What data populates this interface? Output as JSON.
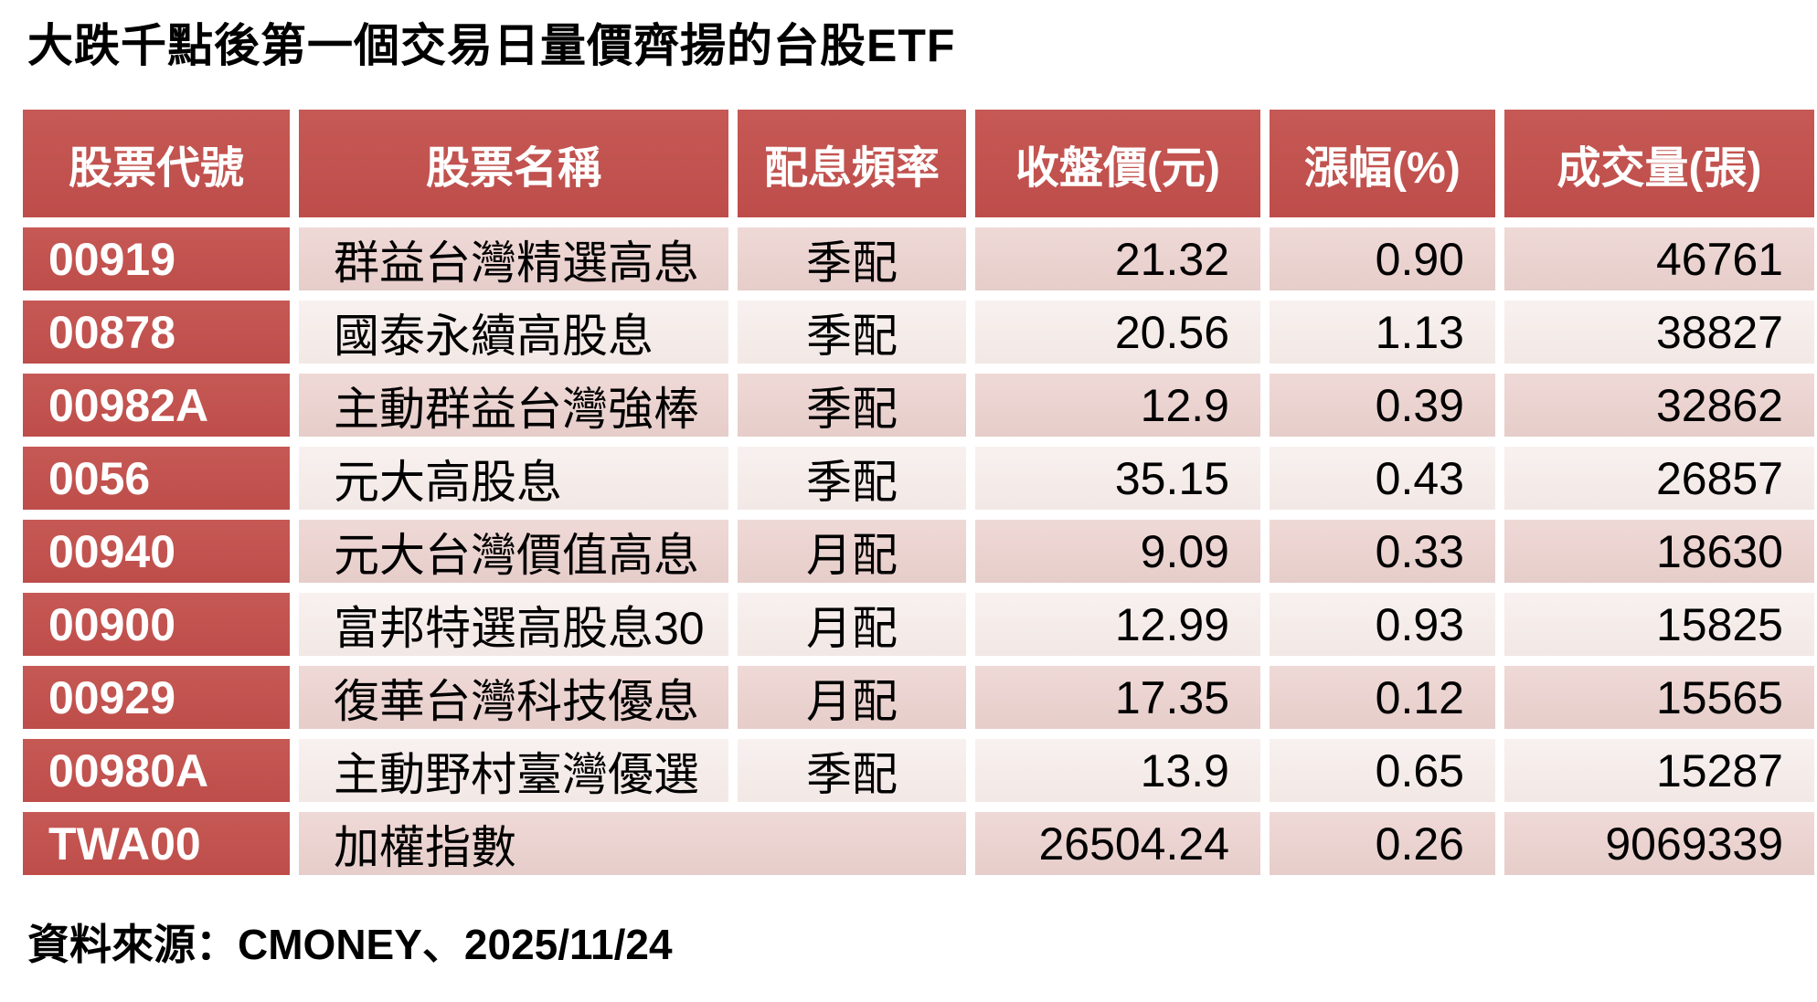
{
  "title": "大跌千點後第一個交易日量價齊揚的台股ETF",
  "source_note": "資料來源：CMONEY、2025/11/24",
  "colors": {
    "header_red": "#C0504D",
    "band_dark_pink": "#E9D2CF",
    "band_light_pink": "#F6EFEC",
    "header_text": "#FFFFFF",
    "body_text": "#000000"
  },
  "table": {
    "headers": [
      "股票代號",
      "股票名稱",
      "配息頻率",
      "收盤價(元)",
      "漲幅(%)",
      "成交量(張)"
    ],
    "rows": [
      {
        "code": "00919",
        "name": "群益台灣精選高息",
        "freq": "季配",
        "close": "21.32",
        "change": "0.90",
        "volume": "46761"
      },
      {
        "code": "00878",
        "name": "國泰永續高股息",
        "freq": "季配",
        "close": "20.56",
        "change": "1.13",
        "volume": "38827"
      },
      {
        "code": "00982A",
        "name": "主動群益台灣強棒",
        "freq": "季配",
        "close": "12.9",
        "change": "0.39",
        "volume": "32862"
      },
      {
        "code": "0056",
        "name": "元大高股息",
        "freq": "季配",
        "close": "35.15",
        "change": "0.43",
        "volume": "26857"
      },
      {
        "code": "00940",
        "name": "元大台灣價值高息",
        "freq": "月配",
        "close": "9.09",
        "change": "0.33",
        "volume": "18630"
      },
      {
        "code": "00900",
        "name": "富邦特選高股息30",
        "freq": "月配",
        "close": "12.99",
        "change": "0.93",
        "volume": "15825"
      },
      {
        "code": "00929",
        "name": "復華台灣科技優息",
        "freq": "月配",
        "close": "17.35",
        "change": "0.12",
        "volume": "15565"
      },
      {
        "code": "00980A",
        "name": "主動野村臺灣優選",
        "freq": "季配",
        "close": "13.9",
        "change": "0.65",
        "volume": "15287"
      },
      {
        "code": "TWA00",
        "name": "加權指數",
        "freq": "",
        "close": "26504.24",
        "change": "0.26",
        "volume": "9069339"
      }
    ]
  },
  "chart_data": {
    "type": "table",
    "title": "大跌千點後第一個交易日量價齊揚的台股ETF",
    "columns": [
      "股票代號",
      "股票名稱",
      "配息頻率",
      "收盤價(元)",
      "漲幅(%)",
      "成交量(張)"
    ],
    "rows": [
      [
        "00919",
        "群益台灣精選高息",
        "季配",
        21.32,
        0.9,
        46761
      ],
      [
        "00878",
        "國泰永續高股息",
        "季配",
        20.56,
        1.13,
        38827
      ],
      [
        "00982A",
        "主動群益台灣強棒",
        "季配",
        12.9,
        0.39,
        32862
      ],
      [
        "0056",
        "元大高股息",
        "季配",
        35.15,
        0.43,
        26857
      ],
      [
        "00940",
        "元大台灣價值高息",
        "月配",
        9.09,
        0.33,
        18630
      ],
      [
        "00900",
        "富邦特選高股息30",
        "月配",
        12.99,
        0.93,
        15825
      ],
      [
        "00929",
        "復華台灣科技優息",
        "月配",
        17.35,
        0.12,
        15565
      ],
      [
        "00980A",
        "主動野村臺灣優選",
        "季配",
        13.9,
        0.65,
        15287
      ],
      [
        "TWA00",
        "加權指數",
        "",
        26504.24,
        0.26,
        9069339
      ]
    ],
    "source": "資料來源：CMONEY、2025/11/24"
  }
}
